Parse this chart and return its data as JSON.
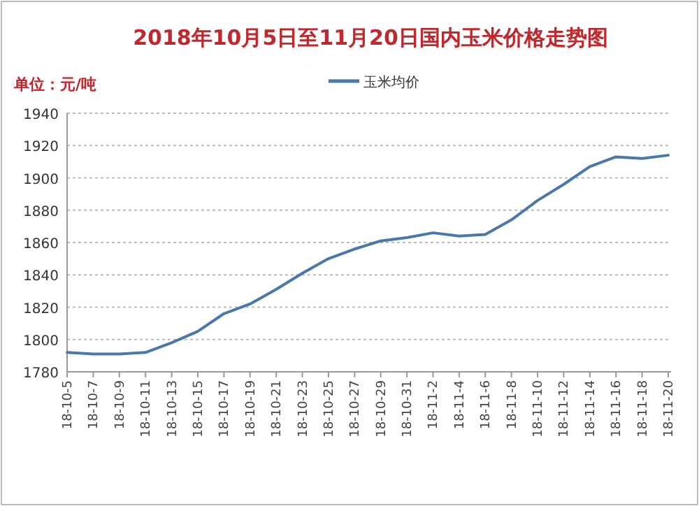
{
  "chart_data": {
    "type": "line",
    "title": "2018年10月5日至11月20日国内玉米价格走势图",
    "ylabel": "单位：元/吨",
    "categories": [
      "18-10-5",
      "18-10-7",
      "18-10-9",
      "18-10-11",
      "18-10-13",
      "18-10-15",
      "18-10-17",
      "18-10-19",
      "18-10-21",
      "18-10-23",
      "18-10-25",
      "18-10-27",
      "18-10-29",
      "18-10-31",
      "18-11-2",
      "18-11-4",
      "18-11-6",
      "18-11-8",
      "18-11-10",
      "18-11-12",
      "18-11-14",
      "18-11-16",
      "18-11-18",
      "18-11-20"
    ],
    "series": [
      {
        "name": "玉米均价",
        "color": "#4a78aa",
        "values": [
          1792,
          1791,
          1791,
          1792,
          1798,
          1805,
          1816,
          1822,
          1831,
          1841,
          1850,
          1856,
          1861,
          1863,
          1866,
          1864,
          1865,
          1874,
          1886,
          1896,
          1907,
          1913,
          1912,
          1914
        ]
      }
    ],
    "ylim": [
      1780,
      1940
    ],
    "yticks": [
      1780,
      1800,
      1820,
      1840,
      1860,
      1880,
      1900,
      1920,
      1940
    ],
    "grid": "y",
    "legend": "top"
  }
}
